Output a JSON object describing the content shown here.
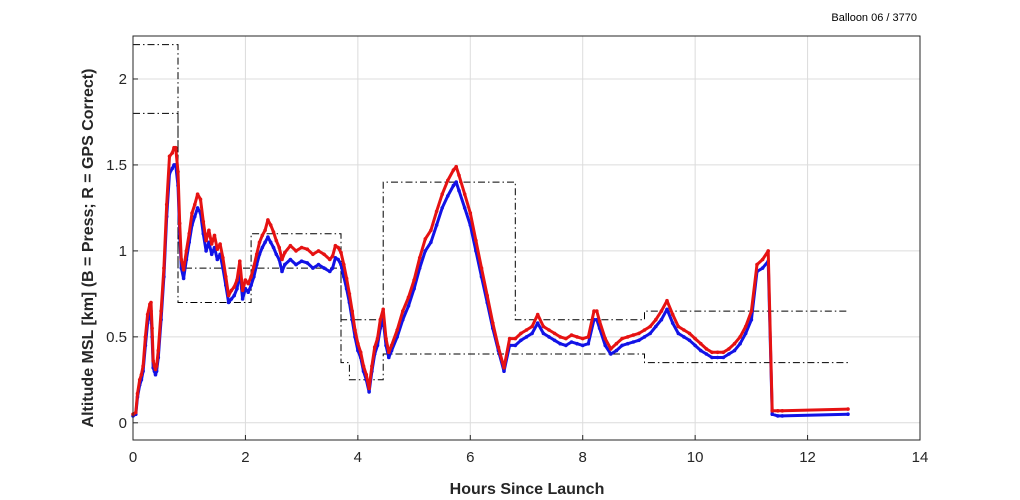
{
  "chart_data": {
    "type": "line",
    "title": "",
    "annotation": "Balloon 06 / 3770",
    "xlabel": "Hours Since Launch",
    "ylabel": "Altitude MSL [km]   (B = Press; R = GPS Correct)",
    "xlim": [
      0,
      14
    ],
    "ylim": [
      -0.1,
      2.25
    ],
    "xticks": [
      0,
      2,
      4,
      6,
      8,
      10,
      12,
      14
    ],
    "yticks": [
      0,
      0.5,
      1,
      1.5,
      2
    ],
    "xtick_labels": [
      "0",
      "2",
      "4",
      "6",
      "8",
      "10",
      "12",
      "14"
    ],
    "ytick_labels": [
      "0",
      "0.5",
      "1",
      "1.5",
      "2"
    ],
    "grid": true,
    "colors": {
      "blue": "#1212e6",
      "red": "#e61212",
      "bounds": "#000000",
      "grid": "#dcdcdc"
    },
    "series": [
      {
        "color": "blue",
        "x": [
          0.0,
          0.05,
          0.08,
          0.12,
          0.15,
          0.18,
          0.22,
          0.26,
          0.3,
          0.32,
          0.34,
          0.36,
          0.38,
          0.4,
          0.42,
          0.45,
          0.5,
          0.55,
          0.6,
          0.65,
          0.7,
          0.73,
          0.76,
          0.8,
          0.83,
          0.86,
          0.9,
          0.95,
          1.0,
          1.05,
          1.1,
          1.15,
          1.2,
          1.25,
          1.3,
          1.35,
          1.4,
          1.45,
          1.5,
          1.55,
          1.6,
          1.65,
          1.7,
          1.75,
          1.8,
          1.85,
          1.9,
          1.95,
          2.0,
          2.05,
          2.1,
          2.15,
          2.2,
          2.25,
          2.3,
          2.35,
          2.4,
          2.45,
          2.5,
          2.55,
          2.6,
          2.65,
          2.7,
          2.8,
          2.9,
          3.0,
          3.1,
          3.2,
          3.3,
          3.4,
          3.5,
          3.55,
          3.6,
          3.65,
          3.7,
          3.75,
          3.8,
          3.85,
          3.9,
          3.95,
          4.0,
          4.05,
          4.1,
          4.15,
          4.2,
          4.25,
          4.3,
          4.35,
          4.4,
          4.45,
          4.5,
          4.55,
          4.6,
          4.7,
          4.8,
          4.9,
          5.0,
          5.1,
          5.2,
          5.3,
          5.4,
          5.5,
          5.6,
          5.7,
          5.75,
          5.8,
          5.9,
          6.0,
          6.1,
          6.2,
          6.3,
          6.4,
          6.5,
          6.6,
          6.7,
          6.8,
          6.9,
          7.0,
          7.1,
          7.2,
          7.3,
          7.4,
          7.5,
          7.6,
          7.7,
          7.8,
          7.9,
          8.0,
          8.1,
          8.2,
          8.25,
          8.3,
          8.4,
          8.5,
          8.6,
          8.7,
          8.8,
          8.9,
          9.0,
          9.1,
          9.2,
          9.3,
          9.4,
          9.5,
          9.6,
          9.7,
          9.8,
          9.9,
          10.0,
          10.1,
          10.2,
          10.3,
          10.4,
          10.5,
          10.6,
          10.7,
          10.8,
          10.9,
          11.0,
          11.1,
          11.2,
          11.3,
          11.37,
          11.47,
          11.55,
          12.72
        ],
        "y": [
          0.04,
          0.05,
          0.15,
          0.22,
          0.25,
          0.3,
          0.45,
          0.58,
          0.64,
          0.65,
          0.5,
          0.32,
          0.3,
          0.28,
          0.3,
          0.38,
          0.6,
          0.85,
          1.2,
          1.45,
          1.48,
          1.5,
          1.5,
          1.38,
          1.1,
          0.9,
          0.84,
          0.95,
          1.05,
          1.15,
          1.2,
          1.25,
          1.22,
          1.1,
          1.0,
          1.05,
          0.98,
          1.02,
          0.95,
          0.98,
          0.9,
          0.8,
          0.7,
          0.72,
          0.74,
          0.78,
          0.88,
          0.72,
          0.78,
          0.76,
          0.8,
          0.85,
          0.92,
          0.98,
          1.02,
          1.05,
          1.08,
          1.05,
          1.02,
          0.98,
          0.95,
          0.88,
          0.92,
          0.95,
          0.92,
          0.94,
          0.93,
          0.9,
          0.92,
          0.9,
          0.88,
          0.9,
          0.96,
          0.95,
          0.92,
          0.85,
          0.78,
          0.7,
          0.6,
          0.5,
          0.42,
          0.38,
          0.3,
          0.25,
          0.18,
          0.3,
          0.4,
          0.45,
          0.55,
          0.6,
          0.45,
          0.38,
          0.42,
          0.5,
          0.6,
          0.68,
          0.78,
          0.9,
          1.0,
          1.05,
          1.15,
          1.25,
          1.32,
          1.38,
          1.4,
          1.35,
          1.25,
          1.15,
          1.0,
          0.85,
          0.7,
          0.55,
          0.42,
          0.3,
          0.45,
          0.45,
          0.48,
          0.5,
          0.52,
          0.58,
          0.52,
          0.5,
          0.48,
          0.46,
          0.45,
          0.47,
          0.46,
          0.45,
          0.46,
          0.6,
          0.6,
          0.55,
          0.45,
          0.4,
          0.42,
          0.45,
          0.46,
          0.47,
          0.48,
          0.5,
          0.52,
          0.56,
          0.6,
          0.66,
          0.58,
          0.52,
          0.5,
          0.48,
          0.45,
          0.42,
          0.4,
          0.38,
          0.38,
          0.38,
          0.4,
          0.42,
          0.46,
          0.52,
          0.6,
          0.88,
          0.9,
          0.94,
          0.05,
          0.04,
          0.04,
          0.05
        ]
      },
      {
        "color": "red",
        "x": [
          0.0,
          0.05,
          0.08,
          0.12,
          0.15,
          0.18,
          0.22,
          0.26,
          0.3,
          0.32,
          0.34,
          0.36,
          0.38,
          0.4,
          0.42,
          0.45,
          0.5,
          0.55,
          0.6,
          0.65,
          0.7,
          0.73,
          0.76,
          0.8,
          0.83,
          0.86,
          0.9,
          0.95,
          1.0,
          1.05,
          1.1,
          1.15,
          1.2,
          1.25,
          1.3,
          1.35,
          1.4,
          1.45,
          1.5,
          1.55,
          1.6,
          1.65,
          1.7,
          1.75,
          1.8,
          1.85,
          1.9,
          1.95,
          2.0,
          2.05,
          2.1,
          2.15,
          2.2,
          2.25,
          2.3,
          2.35,
          2.4,
          2.45,
          2.5,
          2.55,
          2.6,
          2.65,
          2.7,
          2.8,
          2.9,
          3.0,
          3.1,
          3.2,
          3.3,
          3.4,
          3.5,
          3.55,
          3.6,
          3.65,
          3.7,
          3.75,
          3.8,
          3.85,
          3.9,
          3.95,
          4.0,
          4.05,
          4.1,
          4.15,
          4.2,
          4.25,
          4.3,
          4.35,
          4.4,
          4.45,
          4.5,
          4.55,
          4.6,
          4.7,
          4.8,
          4.9,
          5.0,
          5.1,
          5.2,
          5.3,
          5.4,
          5.5,
          5.6,
          5.7,
          5.75,
          5.8,
          5.9,
          6.0,
          6.1,
          6.2,
          6.3,
          6.4,
          6.5,
          6.6,
          6.7,
          6.8,
          6.9,
          7.0,
          7.1,
          7.2,
          7.3,
          7.4,
          7.5,
          7.6,
          7.7,
          7.8,
          7.9,
          8.0,
          8.1,
          8.2,
          8.25,
          8.3,
          8.4,
          8.5,
          8.6,
          8.7,
          8.8,
          8.9,
          9.0,
          9.1,
          9.2,
          9.3,
          9.4,
          9.5,
          9.6,
          9.7,
          9.8,
          9.9,
          10.0,
          10.1,
          10.2,
          10.3,
          10.4,
          10.5,
          10.6,
          10.7,
          10.8,
          10.9,
          11.0,
          11.1,
          11.2,
          11.3,
          11.37,
          11.47,
          11.55,
          12.72
        ],
        "y": [
          0.05,
          0.06,
          0.17,
          0.25,
          0.28,
          0.33,
          0.5,
          0.63,
          0.69,
          0.7,
          0.55,
          0.36,
          0.33,
          0.31,
          0.33,
          0.42,
          0.65,
          0.9,
          1.27,
          1.55,
          1.57,
          1.6,
          1.6,
          1.46,
          1.16,
          0.95,
          0.89,
          1.0,
          1.1,
          1.22,
          1.27,
          1.33,
          1.3,
          1.17,
          1.06,
          1.12,
          1.04,
          1.09,
          1.01,
          1.04,
          0.96,
          0.85,
          0.74,
          0.77,
          0.79,
          0.83,
          0.94,
          0.77,
          0.83,
          0.81,
          0.85,
          0.91,
          0.98,
          1.05,
          1.09,
          1.12,
          1.18,
          1.15,
          1.11,
          1.06,
          1.02,
          0.95,
          0.99,
          1.03,
          1.0,
          1.02,
          1.01,
          0.98,
          1.0,
          0.98,
          0.95,
          0.97,
          1.03,
          1.02,
          0.99,
          0.92,
          0.84,
          0.75,
          0.65,
          0.54,
          0.46,
          0.41,
          0.33,
          0.28,
          0.2,
          0.33,
          0.44,
          0.49,
          0.6,
          0.66,
          0.49,
          0.41,
          0.45,
          0.54,
          0.65,
          0.73,
          0.83,
          0.96,
          1.07,
          1.12,
          1.23,
          1.33,
          1.41,
          1.47,
          1.49,
          1.44,
          1.33,
          1.22,
          1.06,
          0.9,
          0.74,
          0.58,
          0.44,
          0.32,
          0.49,
          0.49,
          0.52,
          0.54,
          0.56,
          0.63,
          0.56,
          0.54,
          0.52,
          0.5,
          0.49,
          0.51,
          0.5,
          0.49,
          0.5,
          0.65,
          0.65,
          0.59,
          0.49,
          0.43,
          0.46,
          0.49,
          0.5,
          0.51,
          0.52,
          0.54,
          0.56,
          0.6,
          0.65,
          0.71,
          0.63,
          0.56,
          0.54,
          0.52,
          0.49,
          0.46,
          0.43,
          0.41,
          0.41,
          0.41,
          0.43,
          0.46,
          0.5,
          0.56,
          0.65,
          0.92,
          0.95,
          1.0,
          0.07,
          0.07,
          0.07,
          0.08
        ]
      }
    ],
    "bounds": [
      {
        "x": [
          0.0,
          0.8,
          0.8,
          2.1,
          2.1,
          3.7,
          3.7,
          3.85,
          3.85,
          4.45,
          4.45,
          6.8,
          6.8,
          9.1,
          9.1,
          12.72
        ],
        "y": [
          2.2,
          2.2,
          0.9,
          0.9,
          1.1,
          1.1,
          0.6,
          0.6,
          0.6,
          0.6,
          1.4,
          1.4,
          0.6,
          0.6,
          0.65,
          0.65
        ]
      },
      {
        "x": [
          0.0,
          0.8,
          0.8,
          2.1,
          2.1,
          3.7,
          3.7,
          3.85,
          3.85,
          4.45,
          4.45,
          9.1,
          9.1,
          12.72
        ],
        "y": [
          1.8,
          1.8,
          0.7,
          0.7,
          0.9,
          0.9,
          0.35,
          0.35,
          0.25,
          0.25,
          0.4,
          0.4,
          0.35,
          0.35
        ]
      }
    ]
  }
}
